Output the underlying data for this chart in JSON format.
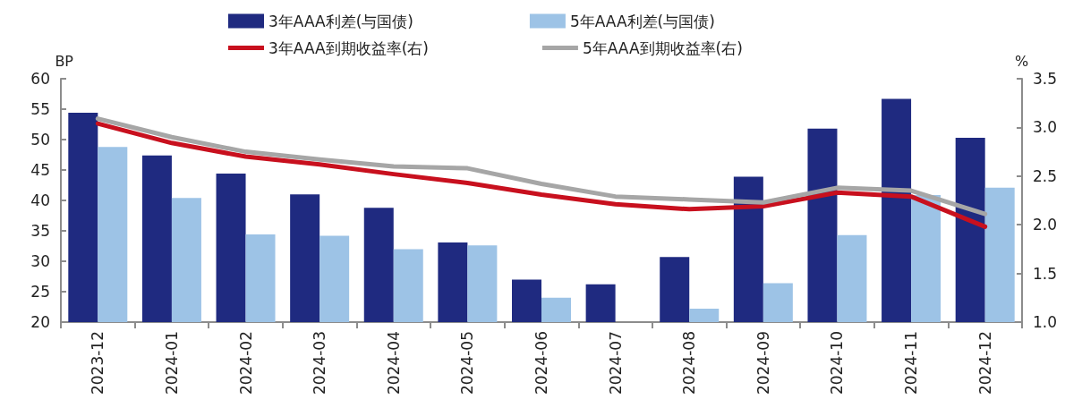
{
  "chart_data": {
    "type": "bar",
    "ylabel": "BP",
    "y2label": "%",
    "categories": [
      "2023-12",
      "2024-01",
      "2024-02",
      "2024-03",
      "2024-04",
      "2024-05",
      "2024-06",
      "2024-07",
      "2024-08",
      "2024-09",
      "2024-10",
      "2024-11",
      "2024-12"
    ],
    "series": [
      {
        "name": "3年AAA利差(与国债)",
        "color": "#1f2a80",
        "values": [
          54.4,
          47.4,
          44.4,
          41.0,
          38.8,
          33.1,
          27.0,
          26.2,
          30.7,
          43.9,
          51.8,
          56.7,
          50.3
        ]
      },
      {
        "name": "5年AAA利差(与国债)",
        "color": "#9dc3e6",
        "values": [
          48.8,
          40.4,
          34.4,
          34.2,
          32.0,
          32.6,
          24.0,
          null,
          22.2,
          26.4,
          34.3,
          40.9,
          42.1
        ]
      },
      {
        "name": "3年AAA到期收益率(右)",
        "type": "line",
        "axis": "y2",
        "color": "#c8101e",
        "values": [
          3.04,
          2.84,
          2.7,
          2.62,
          2.52,
          2.43,
          2.31,
          2.21,
          2.16,
          2.19,
          2.33,
          2.29,
          1.98
        ]
      },
      {
        "name": "5年AAA到期收益率(右)",
        "type": "line",
        "axis": "y2",
        "color": "#a6a6a6",
        "values": [
          3.09,
          2.9,
          2.75,
          2.67,
          2.6,
          2.58,
          2.42,
          2.29,
          2.26,
          2.23,
          2.38,
          2.35,
          2.11
        ]
      }
    ],
    "ylim": [
      20,
      60
    ],
    "yticks": [
      20,
      25,
      30,
      35,
      40,
      45,
      50,
      55,
      60
    ],
    "y2lim": [
      1.0,
      3.5
    ],
    "y2ticks": [
      {
        "value": 1,
        "label": "1.0"
      },
      1.5,
      {
        "value": 2,
        "label": "2.0"
      },
      2.5,
      {
        "value": 3,
        "label": "3.0"
      },
      3.5
    ],
    "grid": false,
    "legend": "top",
    "marker": "none"
  }
}
